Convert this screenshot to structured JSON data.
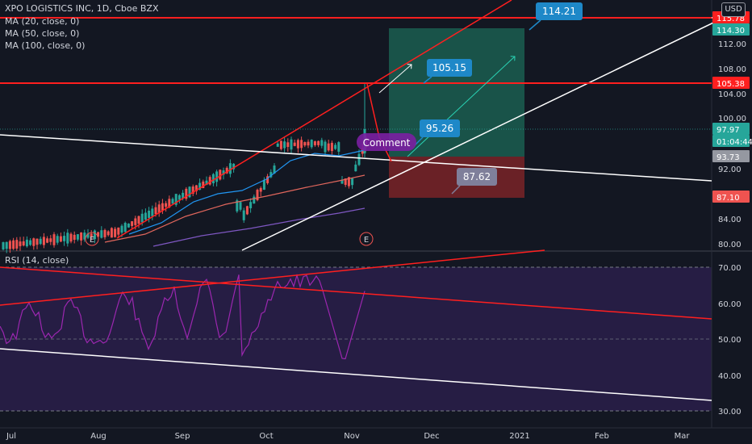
{
  "header": {
    "symbol": "XPO LOGISTICS INC, 1D, Cboe BZX",
    "ma1": "MA (20, close, 0)",
    "ma2": "MA (50, close, 0)",
    "ma3": "MA (100, close, 0)",
    "currency": "USD",
    "rsi_label": "RSI (14, close)"
  },
  "colors": {
    "background": "#131722",
    "up": "#26a69a",
    "down": "#ef5350",
    "trend_red": "#ff1f1f",
    "trend_white": "#ffffff",
    "ma20": "#2196f3",
    "ma50": "#e0665c",
    "ma100": "#7e57c2",
    "rsi": "#9c27b0",
    "target_zone": "#1b5e50",
    "stop_zone": "#7a2327",
    "callout": "#1e88c8",
    "callout_gray": "#7f7f9a",
    "comment_bubble": "#7b1fa2"
  },
  "chart_data": {
    "type": "candlestick",
    "price_axis": {
      "ticks": [
        "116.00",
        "112.00",
        "108.00",
        "104.00",
        "100.00",
        "96.00",
        "92.00",
        "88.00",
        "84.00",
        "80.00"
      ]
    },
    "time_axis": {
      "ticks": [
        "Jul",
        "Aug",
        "Sep",
        "Oct",
        "Nov",
        "Dec",
        "2021",
        "Feb",
        "Mar"
      ]
    },
    "price_badges": [
      {
        "label": "115.78",
        "color": "#ff1f1f"
      },
      {
        "label": "114.30",
        "color": "#26a69a"
      },
      {
        "label": "105.38",
        "color": "#ff1f1f"
      },
      {
        "label": "97.97",
        "color": "#26a69a"
      },
      {
        "label": "01:04:44",
        "color": "#26a69a"
      },
      {
        "label": "93.73",
        "color": "#9598a1"
      },
      {
        "label": "87.10",
        "color": "#ef5350"
      }
    ],
    "callouts": [
      "114.21",
      "105.15",
      "95.26",
      "87.62"
    ],
    "comment": "Comment",
    "earnings_marker": "E",
    "rsi": {
      "ticks": [
        "70.00",
        "60.00",
        "50.00",
        "40.00",
        "30.00"
      ],
      "band": [
        30,
        70
      ]
    }
  }
}
